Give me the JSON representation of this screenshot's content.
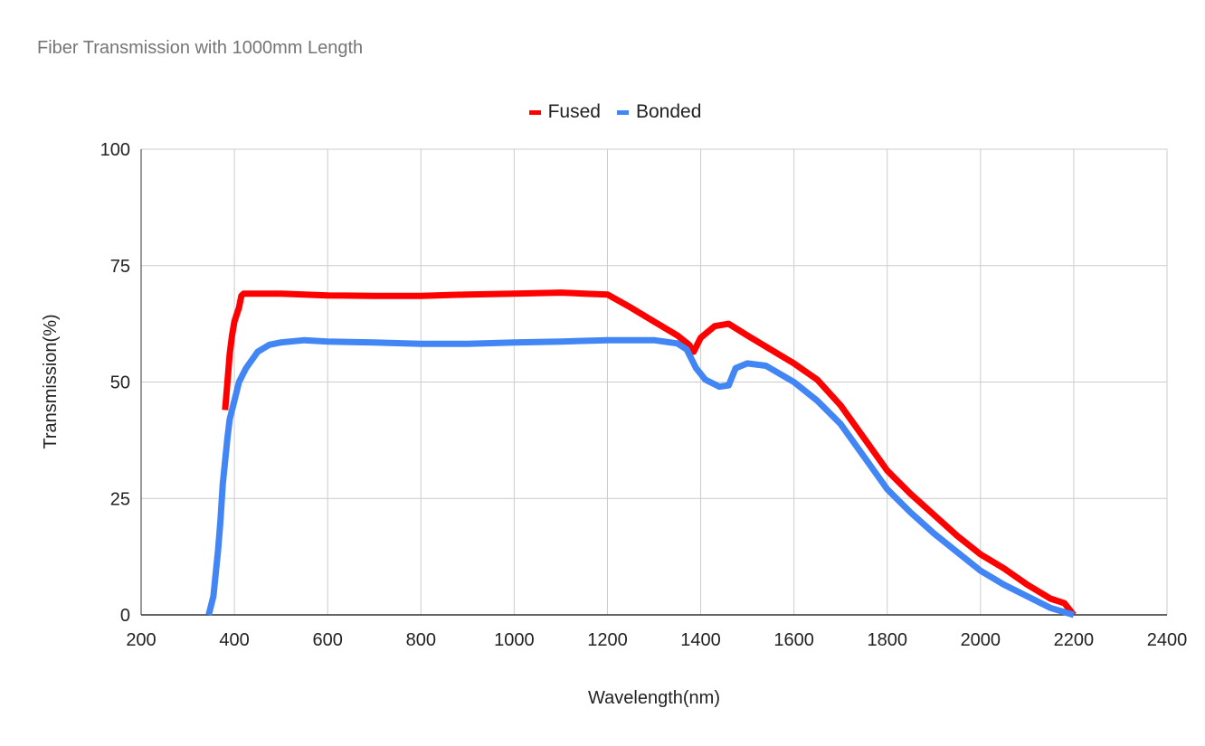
{
  "chart": {
    "title": "Fiber Transmission with 1000mm Length",
    "xlabel": "Wavelength(nm)",
    "ylabel": "Transmission(%)",
    "legend": [
      {
        "name": "Fused",
        "color": "#ff0000"
      },
      {
        "name": "Bonded",
        "color": "#4285f4"
      }
    ]
  },
  "chart_data": {
    "type": "line",
    "title": "Fiber Transmission with 1000mm Length",
    "xlabel": "Wavelength(nm)",
    "ylabel": "Transmission(%)",
    "xlim": [
      200,
      2400
    ],
    "ylim": [
      0,
      100
    ],
    "xticks": [
      200,
      400,
      600,
      800,
      1000,
      1200,
      1400,
      1600,
      1800,
      2000,
      2200,
      2400
    ],
    "yticks": [
      0,
      25,
      50,
      75,
      100
    ],
    "grid": true,
    "legend_position": "top",
    "series": [
      {
        "name": "Fused",
        "color": "#ff0000",
        "x": [
          380,
          385,
          390,
          395,
          400,
          410,
          415,
          420,
          430,
          450,
          500,
          550,
          600,
          700,
          800,
          900,
          1000,
          1100,
          1150,
          1200,
          1250,
          1300,
          1350,
          1375,
          1385,
          1400,
          1430,
          1460,
          1500,
          1550,
          1600,
          1650,
          1700,
          1750,
          1800,
          1850,
          1900,
          1950,
          2000,
          2050,
          2100,
          2150,
          2180,
          2200
        ],
        "y": [
          44,
          50,
          56,
          60,
          63,
          66,
          68.5,
          69,
          69,
          69,
          69,
          68.8,
          68.6,
          68.5,
          68.5,
          68.8,
          69,
          69.2,
          69,
          68.8,
          66,
          63,
          60,
          58,
          56.5,
          59.5,
          62,
          62.5,
          60,
          57,
          54,
          50.5,
          45,
          38,
          31,
          26,
          21.5,
          17,
          13,
          10,
          6.5,
          3.5,
          2.5,
          0
        ]
      },
      {
        "name": "Bonded",
        "color": "#4285f4",
        "x": [
          345,
          355,
          360,
          365,
          370,
          375,
          380,
          385,
          390,
          400,
          410,
          425,
          450,
          475,
          500,
          550,
          600,
          700,
          800,
          900,
          1000,
          1100,
          1200,
          1300,
          1350,
          1370,
          1390,
          1410,
          1440,
          1460,
          1475,
          1500,
          1540,
          1600,
          1650,
          1700,
          1750,
          1800,
          1850,
          1900,
          1950,
          2000,
          2050,
          2100,
          2150,
          2200
        ],
        "y": [
          0,
          4,
          9,
          14,
          20,
          28,
          33,
          38,
          42,
          46,
          50,
          53,
          56.5,
          58,
          58.5,
          59,
          58.7,
          58.5,
          58.2,
          58.2,
          58.5,
          58.7,
          59,
          59,
          58.3,
          57,
          53,
          50.5,
          49,
          49.3,
          53,
          54,
          53.5,
          50,
          46,
          41,
          34,
          27,
          22,
          17.5,
          13.5,
          9.5,
          6.5,
          4,
          1.5,
          0
        ]
      }
    ]
  }
}
